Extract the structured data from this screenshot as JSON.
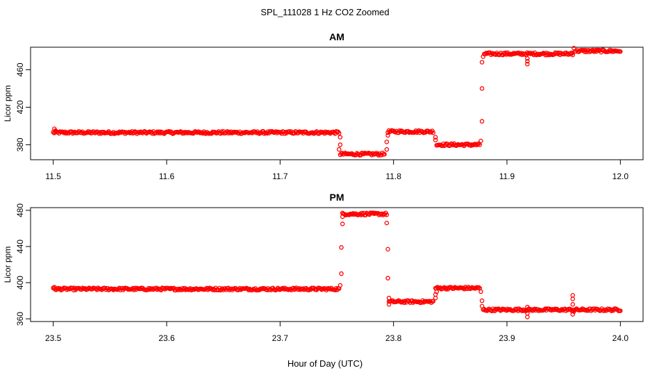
{
  "figure": {
    "title": "SPL_111028  1 Hz CO2 Zoomed",
    "xlabel": "Hour of Day (UTC)"
  },
  "chart_data": [
    {
      "type": "scatter",
      "title": "AM",
      "ylabel": "Licor ppm",
      "xlim": [
        11.5,
        12.0
      ],
      "ylim": [
        364,
        484
      ],
      "xticks": [
        "11.5",
        "11.6",
        "11.7",
        "11.8",
        "11.9",
        "12.0"
      ],
      "yticks": [
        "380",
        "420",
        "460"
      ],
      "grid": false,
      "marker_color": "#ff0000",
      "segments": [
        {
          "x_start": 11.5,
          "x_end": 11.752,
          "y": 393
        },
        {
          "x_start": 11.753,
          "x_end": 11.792,
          "y": 370
        },
        {
          "x_start": 11.795,
          "x_end": 11.835,
          "y": 394
        },
        {
          "x_start": 11.838,
          "x_end": 11.876,
          "y": 380
        },
        {
          "x_start": 11.88,
          "x_end": 11.958,
          "y": 477
        },
        {
          "x_start": 11.96,
          "x_end": 12.0,
          "y": 480
        }
      ],
      "points": [
        {
          "x": 11.501,
          "y": 397
        },
        {
          "x": 11.502,
          "y": 395
        },
        {
          "x": 11.753,
          "y": 388
        },
        {
          "x": 11.753,
          "y": 380
        },
        {
          "x": 11.752,
          "y": 375
        },
        {
          "x": 11.794,
          "y": 375
        },
        {
          "x": 11.794,
          "y": 383
        },
        {
          "x": 11.795,
          "y": 390
        },
        {
          "x": 11.837,
          "y": 388
        },
        {
          "x": 11.837,
          "y": 385
        },
        {
          "x": 11.877,
          "y": 384
        },
        {
          "x": 11.878,
          "y": 405
        },
        {
          "x": 11.878,
          "y": 440
        },
        {
          "x": 11.878,
          "y": 468
        },
        {
          "x": 11.879,
          "y": 474
        },
        {
          "x": 11.918,
          "y": 466
        },
        {
          "x": 11.918,
          "y": 469
        },
        {
          "x": 11.918,
          "y": 472
        },
        {
          "x": 11.959,
          "y": 483
        },
        {
          "x": 11.957,
          "y": 478
        }
      ]
    },
    {
      "type": "scatter",
      "title": "PM",
      "ylabel": "Licor ppm",
      "xlim": [
        23.5,
        24.0
      ],
      "ylim": [
        357,
        483
      ],
      "xticks": [
        "23.5",
        "23.6",
        "23.7",
        "23.8",
        "23.9",
        "24.0"
      ],
      "yticks": [
        "360",
        "400",
        "440",
        "480"
      ],
      "grid": false,
      "marker_color": "#ff0000",
      "segments": [
        {
          "x_start": 23.5,
          "x_end": 23.752,
          "y": 393
        },
        {
          "x_start": 23.755,
          "x_end": 23.794,
          "y": 476
        },
        {
          "x_start": 23.796,
          "x_end": 23.835,
          "y": 379
        },
        {
          "x_start": 23.837,
          "x_end": 23.876,
          "y": 394
        },
        {
          "x_start": 23.879,
          "x_end": 24.0,
          "y": 370
        }
      ],
      "points": [
        {
          "x": 23.501,
          "y": 395
        },
        {
          "x": 23.753,
          "y": 397
        },
        {
          "x": 23.754,
          "y": 410
        },
        {
          "x": 23.754,
          "y": 439
        },
        {
          "x": 23.755,
          "y": 465
        },
        {
          "x": 23.755,
          "y": 473
        },
        {
          "x": 23.794,
          "y": 466
        },
        {
          "x": 23.795,
          "y": 437
        },
        {
          "x": 23.795,
          "y": 405
        },
        {
          "x": 23.796,
          "y": 383
        },
        {
          "x": 23.796,
          "y": 376
        },
        {
          "x": 23.837,
          "y": 383
        },
        {
          "x": 23.837,
          "y": 387
        },
        {
          "x": 23.838,
          "y": 390
        },
        {
          "x": 23.877,
          "y": 390
        },
        {
          "x": 23.878,
          "y": 380
        },
        {
          "x": 23.878,
          "y": 374
        },
        {
          "x": 23.918,
          "y": 362
        },
        {
          "x": 23.918,
          "y": 366
        },
        {
          "x": 23.918,
          "y": 373
        },
        {
          "x": 23.958,
          "y": 386
        },
        {
          "x": 23.958,
          "y": 382
        },
        {
          "x": 23.958,
          "y": 376
        },
        {
          "x": 23.958,
          "y": 365
        },
        {
          "x": 23.959,
          "y": 368
        }
      ]
    }
  ]
}
